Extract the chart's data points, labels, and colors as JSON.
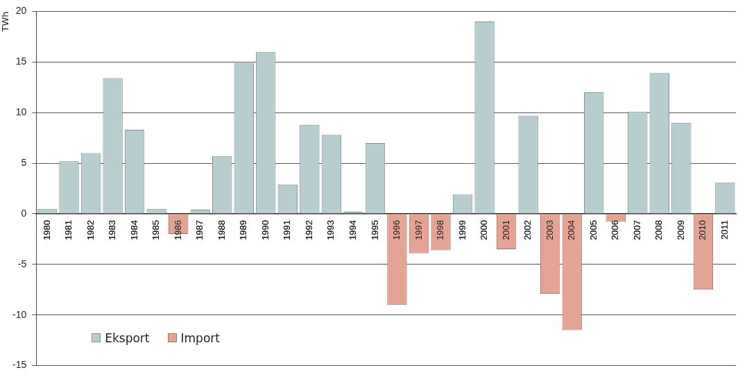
{
  "chart_data": {
    "type": "bar",
    "ylabel": "TWh",
    "categories": [
      "1980",
      "1981",
      "1982",
      "1983",
      "1984",
      "1985",
      "1986",
      "1987",
      "1988",
      "1989",
      "1990",
      "1991",
      "1992",
      "1993",
      "1994",
      "1995",
      "1996",
      "1997",
      "1998",
      "1999",
      "2000",
      "2001",
      "2002",
      "2003",
      "2004",
      "2005",
      "2006",
      "2007",
      "2008",
      "2009",
      "2010",
      "2011"
    ],
    "series": [
      {
        "name": "Eksport",
        "color": "#b8cece",
        "values": [
          0.5,
          5.2,
          6.0,
          13.4,
          8.3,
          0.5,
          null,
          0.4,
          5.7,
          14.9,
          16.0,
          2.9,
          8.8,
          7.8,
          0.2,
          7.0,
          null,
          null,
          null,
          1.9,
          19.0,
          null,
          9.7,
          null,
          null,
          12.0,
          null,
          10.1,
          13.9,
          9.0,
          null,
          3.1
        ]
      },
      {
        "name": "Import",
        "color": "#e5a394",
        "values": [
          null,
          null,
          null,
          null,
          null,
          null,
          -2.0,
          null,
          null,
          null,
          null,
          null,
          null,
          null,
          null,
          null,
          -9.0,
          -3.9,
          -3.6,
          null,
          null,
          -3.5,
          null,
          -7.9,
          -11.5,
          null,
          -0.8,
          null,
          null,
          null,
          -7.5,
          null
        ]
      }
    ],
    "stacked": true,
    "ylim": [
      -15,
      20
    ],
    "yticks": [
      -15,
      -10,
      -5,
      0,
      5,
      10,
      15,
      20
    ],
    "grid": "y",
    "legend": "bottom left"
  }
}
